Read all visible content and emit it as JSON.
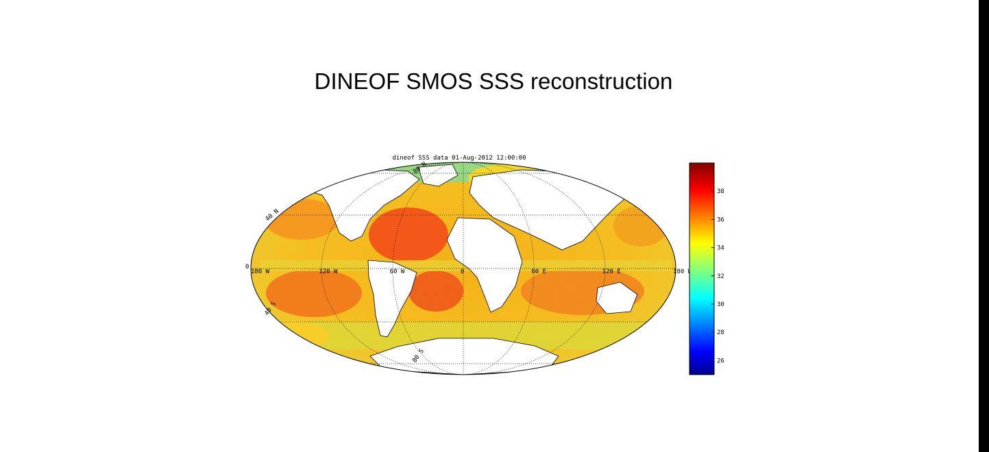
{
  "slide": {
    "title": "DINEOF SMOS SSS reconstruction"
  },
  "map": {
    "subtitle": "dineof SSS data 01-Aug-2012 12:00:00",
    "projection": "mollweide",
    "lon_labels": [
      {
        "lon": -180,
        "text": "180 W"
      },
      {
        "lon": -120,
        "text": "120 W"
      },
      {
        "lon": -60,
        "text": "60 W"
      },
      {
        "lon": 0,
        "text": "0"
      },
      {
        "lon": 60,
        "text": "60 E"
      },
      {
        "lon": 120,
        "text": "120 E"
      },
      {
        "lon": 180,
        "text": "180 W"
      }
    ],
    "lat_labels": [
      {
        "lat": 80,
        "text": "80 N"
      },
      {
        "lat": 40,
        "text": "40 N"
      },
      {
        "lat": 0,
        "text": "0"
      },
      {
        "lat": -40,
        "text": "40 S"
      },
      {
        "lat": -80,
        "text": "80 S"
      }
    ],
    "colorbar": {
      "min": 25,
      "max": 40,
      "ticks": [
        26,
        28,
        30,
        32,
        34,
        36,
        38
      ],
      "colormap": "jet"
    },
    "colors": {
      "land": "#ffffff",
      "coast": "#000000",
      "high_salinity": "#e8401a",
      "mid_salinity": "#f0c020",
      "low_salinity": "#30e0c0"
    }
  }
}
